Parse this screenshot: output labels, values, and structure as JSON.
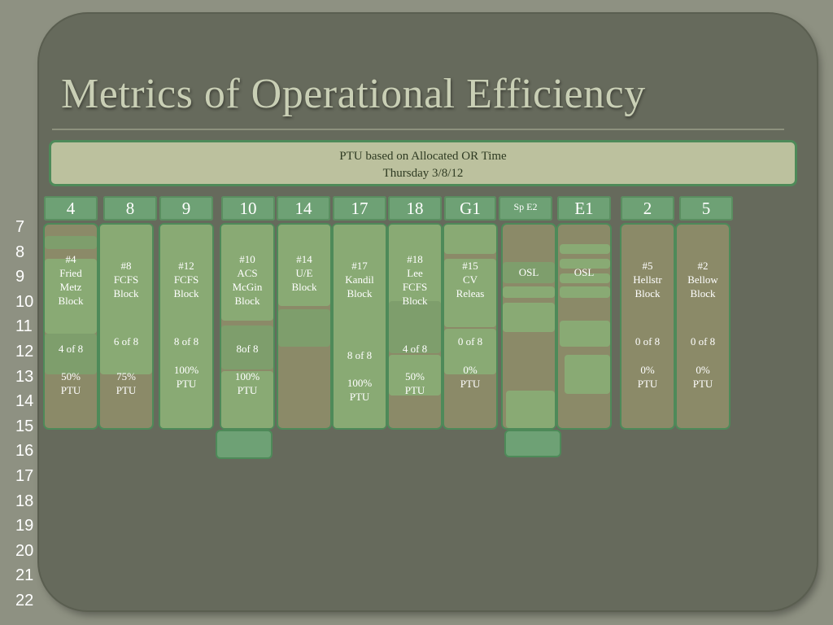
{
  "title": "Metrics of Operational Efficiency",
  "banner": {
    "line1": "PTU based on Allocated OR Time",
    "line2": "Thursday 3/8/12"
  },
  "hours": [
    "7",
    "8",
    "9",
    "10",
    "11",
    "12",
    "13",
    "14",
    "15",
    "16",
    "17",
    "18",
    "19",
    "20",
    "21",
    "22"
  ],
  "rooms": [
    {
      "header": "4",
      "block": "#4\nFried\nMetz\nBlock",
      "cases": "4 of 8",
      "ptu": "50%\nPTU"
    },
    {
      "header": "8",
      "block": "#8\nFCFS\nBlock",
      "cases": "6 of 8",
      "ptu": "75%\nPTU"
    },
    {
      "header": "9",
      "block": "#12\nFCFS\nBlock",
      "cases": "8 of 8",
      "ptu": "100%\nPTU"
    },
    {
      "header": "10",
      "block": "#10\nACS\nMcGin\nBlock",
      "cases": "8of 8",
      "ptu": "100%\nPTU"
    },
    {
      "header": "14",
      "block": "#14\nU/E\nBlock",
      "cases": "",
      "ptu": ""
    },
    {
      "header": "17",
      "block": "#17\nKandil\nBlock",
      "cases": "8 of 8",
      "ptu": "100%\nPTU"
    },
    {
      "header": "18",
      "block": "#18\nLee\nFCFS\nBlock",
      "cases": "4 of 8",
      "ptu": "50%\nPTU"
    },
    {
      "header": "G1",
      "block": "#15\nCV\nReleas",
      "cases": "0 of 8",
      "ptu": "0%\nPTU"
    },
    {
      "header": "Sp E2",
      "block": "OSL",
      "cases": "",
      "ptu": ""
    },
    {
      "header": "E1",
      "block": "OSL",
      "cases": "",
      "ptu": ""
    },
    {
      "header": "2",
      "block": "#5\nHellstr\nBlock",
      "cases": "0 of 8",
      "ptu": "0%\nPTU"
    },
    {
      "header": "5",
      "block": "#2\nBellow\nBlock",
      "cases": "0 of 8",
      "ptu": "0%\nPTU"
    }
  ]
}
